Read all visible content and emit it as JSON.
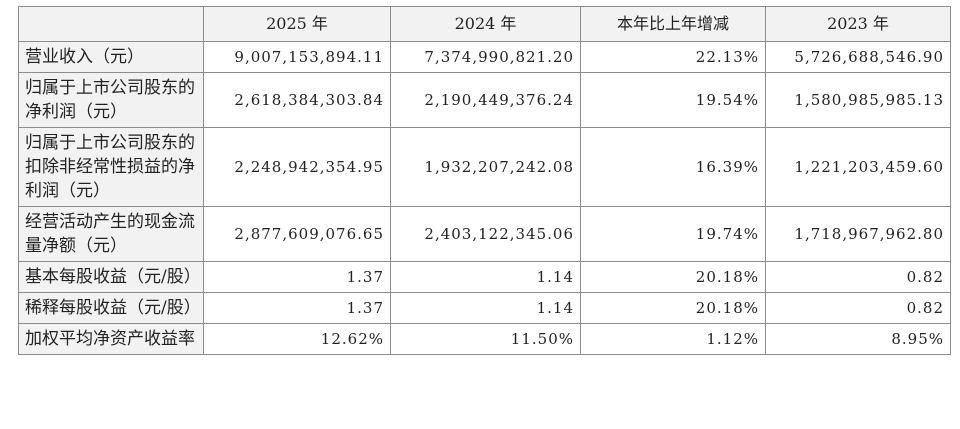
{
  "table": {
    "header": [
      "2025 年",
      "2024 年",
      "本年比上年增减",
      "2023 年"
    ],
    "rows": [
      [
        "营业收入（元）",
        "9,007,153,894.11",
        "7,374,990,821.20",
        "22.13%",
        "5,726,688,546.90"
      ],
      [
        "归属于上市公司股东的净利润（元）",
        "2,618,384,303.84",
        "2,190,449,376.24",
        "19.54%",
        "1,580,985,985.13"
      ],
      [
        "归属于上市公司股东的扣除非经常性损益的净利润（元）",
        "2,248,942,354.95",
        "1,932,207,242.08",
        "16.39%",
        "1,221,203,459.60"
      ],
      [
        "经营活动产生的现金流量净额（元）",
        "2,877,609,076.65",
        "2,403,122,345.06",
        "19.74%",
        "1,718,967,962.80"
      ],
      [
        "基本每股收益（元/股）",
        "1.37",
        "1.14",
        "20.18%",
        "0.82"
      ],
      [
        "稀释每股收益（元/股）",
        "1.37",
        "1.14",
        "20.18%",
        "0.82"
      ],
      [
        "加权平均净资产收益率",
        "12.62%",
        "11.50%",
        "1.12%",
        "8.95%"
      ]
    ]
  }
}
